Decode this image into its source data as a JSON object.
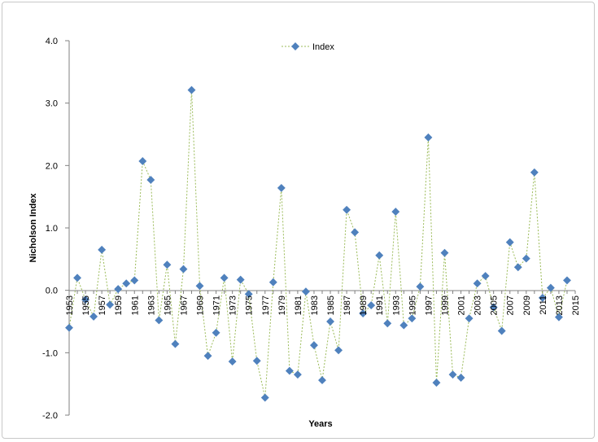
{
  "chart_data": {
    "type": "line",
    "xlabel": "Years",
    "ylabel": "Nicholson Index",
    "ylim": [
      -2.0,
      4.0
    ],
    "yticks": [
      -2.0,
      -1.0,
      0.0,
      1.0,
      2.0,
      3.0,
      4.0
    ],
    "ytick_labels": [
      "-2.0",
      "-1.0",
      "0.0",
      "1.0",
      "2.0",
      "3.0",
      "4.0"
    ],
    "xlim": [
      1953,
      2015
    ],
    "xtick_labels": [
      "1953",
      "1955",
      "1957",
      "1959",
      "1961",
      "1963",
      "1965",
      "1967",
      "1969",
      "1971",
      "1973",
      "1975",
      "1977",
      "1979",
      "1981",
      "1983",
      "1985",
      "1987",
      "1989",
      "1991",
      "1993",
      "1995",
      "1997",
      "1999",
      "2001",
      "2003",
      "2005",
      "2007",
      "2009",
      "2011",
      "2013",
      "2015"
    ],
    "legend_position": "top-center",
    "grid": false,
    "colors": {
      "marker": "#4f81bd",
      "line": "#9bbb59"
    },
    "series": [
      {
        "name": "Index",
        "x": [
          1953,
          1954,
          1955,
          1956,
          1957,
          1958,
          1959,
          1960,
          1961,
          1962,
          1963,
          1964,
          1965,
          1966,
          1967,
          1968,
          1969,
          1970,
          1971,
          1972,
          1973,
          1974,
          1975,
          1976,
          1977,
          1978,
          1979,
          1980,
          1981,
          1982,
          1983,
          1984,
          1985,
          1986,
          1987,
          1988,
          1989,
          1990,
          1991,
          1992,
          1993,
          1994,
          1995,
          1996,
          1997,
          1998,
          1999,
          2000,
          2001,
          2002,
          2003,
          2004,
          2005,
          2006,
          2007,
          2008,
          2009,
          2010,
          2011,
          2012,
          2013,
          2014
        ],
        "values": [
          -0.6,
          0.2,
          -0.15,
          -0.42,
          0.65,
          -0.23,
          0.02,
          0.11,
          0.16,
          2.07,
          1.77,
          -0.48,
          0.41,
          -0.86,
          0.34,
          3.21,
          0.07,
          -1.05,
          -0.68,
          0.2,
          -1.14,
          0.17,
          -0.06,
          -1.13,
          -1.72,
          0.13,
          1.64,
          -1.29,
          -1.35,
          -0.02,
          -0.88,
          -1.44,
          -0.5,
          -0.96,
          1.29,
          0.93,
          -0.37,
          -0.24,
          0.56,
          -0.53,
          1.26,
          -0.56,
          -0.45,
          0.06,
          2.45,
          -1.48,
          0.6,
          -1.35,
          -1.4,
          -0.45,
          0.11,
          0.23,
          -0.27,
          -0.65,
          0.77,
          0.37,
          0.51,
          1.89,
          -0.12,
          0.04,
          -0.43,
          0.16
        ]
      }
    ]
  }
}
